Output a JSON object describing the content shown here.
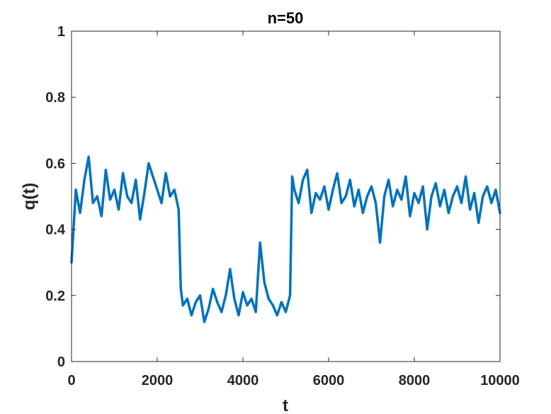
{
  "chart_data": {
    "type": "line",
    "title": "n=50",
    "xlabel": "t",
    "ylabel": "q(t)",
    "xlim": [
      0,
      10000
    ],
    "ylim": [
      0,
      1
    ],
    "xticks": [
      0,
      2000,
      4000,
      6000,
      8000,
      10000
    ],
    "yticks": [
      0,
      0.2,
      0.4,
      0.6,
      0.8,
      1
    ],
    "xtick_labels": [
      "0",
      "2000",
      "4000",
      "6000",
      "8000",
      "10000"
    ],
    "ytick_labels": [
      "0",
      "0.2",
      "0.4",
      "0.6",
      "0.8",
      "1"
    ],
    "grid": false,
    "series": [
      {
        "color": "#0072BD",
        "x": [
          0,
          100,
          200,
          300,
          400,
          500,
          600,
          700,
          800,
          900,
          1000,
          1100,
          1200,
          1300,
          1400,
          1500,
          1600,
          1700,
          1800,
          1900,
          2000,
          2100,
          2200,
          2300,
          2400,
          2500,
          2550,
          2600,
          2700,
          2800,
          2900,
          3000,
          3100,
          3200,
          3300,
          3400,
          3500,
          3600,
          3700,
          3800,
          3900,
          4000,
          4100,
          4200,
          4300,
          4400,
          4500,
          4600,
          4700,
          4800,
          4900,
          5000,
          5100,
          5150,
          5200,
          5300,
          5400,
          5500,
          5600,
          5700,
          5800,
          5900,
          6000,
          6100,
          6200,
          6300,
          6400,
          6500,
          6600,
          6700,
          6800,
          6900,
          7000,
          7100,
          7200,
          7300,
          7400,
          7500,
          7600,
          7700,
          7800,
          7900,
          8000,
          8100,
          8200,
          8300,
          8400,
          8500,
          8600,
          8700,
          8800,
          8900,
          9000,
          9100,
          9200,
          9300,
          9400,
          9500,
          9600,
          9700,
          9800,
          9900,
          10000
        ],
        "y": [
          0.3,
          0.52,
          0.45,
          0.55,
          0.62,
          0.48,
          0.5,
          0.44,
          0.58,
          0.49,
          0.52,
          0.46,
          0.57,
          0.5,
          0.48,
          0.55,
          0.43,
          0.51,
          0.6,
          0.56,
          0.52,
          0.48,
          0.57,
          0.5,
          0.52,
          0.46,
          0.22,
          0.17,
          0.19,
          0.14,
          0.18,
          0.2,
          0.12,
          0.16,
          0.22,
          0.18,
          0.15,
          0.2,
          0.28,
          0.19,
          0.14,
          0.21,
          0.17,
          0.19,
          0.15,
          0.36,
          0.24,
          0.19,
          0.17,
          0.14,
          0.18,
          0.15,
          0.2,
          0.56,
          0.52,
          0.48,
          0.55,
          0.58,
          0.45,
          0.51,
          0.49,
          0.53,
          0.46,
          0.52,
          0.57,
          0.48,
          0.5,
          0.55,
          0.47,
          0.52,
          0.45,
          0.5,
          0.53,
          0.48,
          0.36,
          0.5,
          0.55,
          0.47,
          0.52,
          0.49,
          0.56,
          0.44,
          0.51,
          0.48,
          0.53,
          0.4,
          0.5,
          0.54,
          0.47,
          0.52,
          0.45,
          0.5,
          0.53,
          0.48,
          0.56,
          0.46,
          0.51,
          0.42,
          0.5,
          0.53,
          0.48,
          0.52,
          0.45
        ]
      }
    ]
  }
}
